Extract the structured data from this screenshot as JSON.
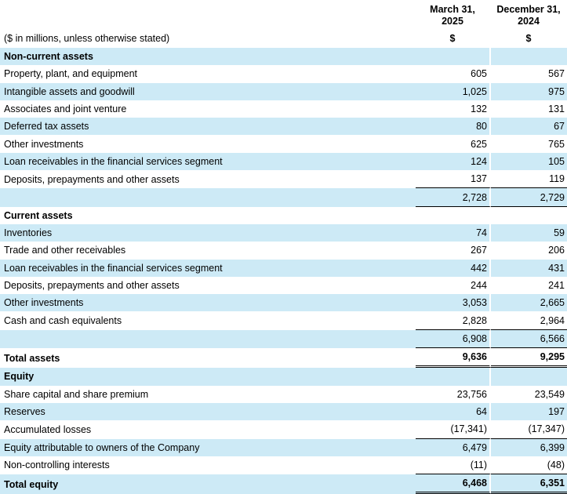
{
  "header": {
    "col1_line1": "March 31,",
    "col1_line2": "2025",
    "col2_line1": "December 31,",
    "col2_line2": "2024",
    "unit_note": "($ in millions, unless otherwise stated)",
    "currency1": "$",
    "currency2": "$"
  },
  "rows": [
    {
      "label": "Non-current assets",
      "v1": "",
      "v2": ""
    },
    {
      "label": "Property, plant, and equipment",
      "v1": "605",
      "v2": "567"
    },
    {
      "label": "Intangible assets and goodwill",
      "v1": "1,025",
      "v2": "975"
    },
    {
      "label": "Associates and joint venture",
      "v1": "132",
      "v2": "131"
    },
    {
      "label": "Deferred tax assets",
      "v1": "80",
      "v2": "67"
    },
    {
      "label": "Other investments",
      "v1": "625",
      "v2": "765"
    },
    {
      "label": "Loan receivables in the financial services segment",
      "v1": "124",
      "v2": "105"
    },
    {
      "label": "Deposits, prepayments and other assets",
      "v1": "137",
      "v2": "119"
    },
    {
      "label": "",
      "v1": "2,728",
      "v2": "2,729"
    },
    {
      "label": "Current assets",
      "v1": "",
      "v2": ""
    },
    {
      "label": "Inventories",
      "v1": "74",
      "v2": "59"
    },
    {
      "label": "Trade and other receivables",
      "v1": "267",
      "v2": "206"
    },
    {
      "label": "Loan receivables in the financial services segment",
      "v1": "442",
      "v2": "431"
    },
    {
      "label": "Deposits, prepayments and other assets",
      "v1": "244",
      "v2": "241"
    },
    {
      "label": "Other investments",
      "v1": "3,053",
      "v2": "2,665"
    },
    {
      "label": "Cash and cash equivalents",
      "v1": "2,828",
      "v2": "2,964"
    },
    {
      "label": "",
      "v1": "6,908",
      "v2": "6,566"
    },
    {
      "label": "Total assets",
      "v1": "9,636",
      "v2": "9,295"
    },
    {
      "label": "Equity",
      "v1": "",
      "v2": ""
    },
    {
      "label": "Share capital and share premium",
      "v1": "23,756",
      "v2": "23,549"
    },
    {
      "label": "Reserves",
      "v1": "64",
      "v2": "197"
    },
    {
      "label": "Accumulated losses",
      "v1": "(17,341)",
      "v2": "(17,347)"
    },
    {
      "label": "Equity attributable to owners of the Company",
      "v1": "6,479",
      "v2": "6,399"
    },
    {
      "label": "Non-controlling interests",
      "v1": "(11)",
      "v2": "(48)"
    },
    {
      "label": "Total equity",
      "v1": "6,468",
      "v2": "6,351"
    }
  ]
}
